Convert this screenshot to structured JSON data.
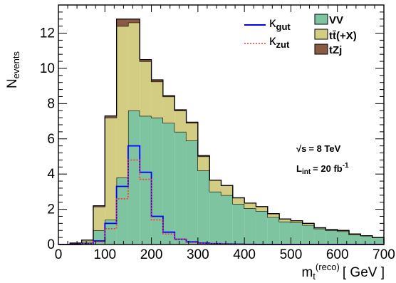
{
  "chart_data": {
    "type": "bar",
    "stacked": true,
    "bin_width": 25,
    "x": [
      0,
      25,
      50,
      75,
      100,
      125,
      150,
      175,
      200,
      225,
      250,
      275,
      300,
      325,
      350,
      375,
      400,
      425,
      450,
      475,
      500,
      525,
      550,
      575,
      600,
      625,
      650,
      675
    ],
    "series": [
      {
        "name": "VV",
        "color": "#7fc4a0",
        "values": [
          0,
          0.05,
          0.15,
          0.8,
          1.4,
          3.8,
          7.6,
          7.3,
          7.2,
          6.9,
          6.4,
          5.9,
          4.2,
          3.0,
          2.8,
          2.3,
          2.05,
          1.9,
          1.55,
          1.3,
          1.25,
          1.1,
          0.9,
          0.8,
          0.75,
          0.55,
          0.5,
          0.4
        ]
      },
      {
        "name": "tt̄(+X)",
        "color": "#d3cd84",
        "values": [
          0,
          0.03,
          0.1,
          1.35,
          5.8,
          8.6,
          5.0,
          3.1,
          2.05,
          1.5,
          1.2,
          1.0,
          0.8,
          0.65,
          0.55,
          0.35,
          0.3,
          0.25,
          0.2,
          0.15,
          0.1,
          0.1,
          0.05,
          0.05,
          0.05,
          0.05,
          0.0,
          0.0
        ]
      },
      {
        "name": "tZj",
        "color": "#8b5a44",
        "values": [
          0,
          0,
          0,
          0.05,
          0.1,
          0.4,
          0.2,
          0.1,
          0.1,
          0.05,
          0.05,
          0.05,
          0.05,
          0.0,
          0.0,
          0.0,
          0.0,
          0.0,
          0.0,
          0.0,
          0.0,
          0.0,
          0.0,
          0.0,
          0.0,
          0.0,
          0.0,
          0.0
        ]
      }
    ],
    "signals": [
      {
        "name": "gut",
        "legend_symbol": "κ",
        "color": "#0000ff",
        "style": "solid",
        "values": [
          0,
          0,
          0.05,
          0.2,
          1.2,
          3.3,
          5.6,
          4.1,
          1.6,
          0.7,
          0.3,
          0.15,
          0.08,
          0.05,
          0.03,
          0.02,
          0.01,
          0.0,
          0.0,
          0.0,
          0.0,
          0.0,
          0.0,
          0.0,
          0.0,
          0.0,
          0.0,
          0.0
        ]
      },
      {
        "name": "zut",
        "legend_symbol": "κ",
        "color": "#ff3333",
        "style": "dotted",
        "values": [
          0,
          0,
          0.05,
          0.15,
          0.9,
          2.6,
          4.8,
          3.7,
          1.4,
          0.6,
          0.3,
          0.12,
          0.06,
          0.04,
          0.02,
          0.01,
          0.0,
          0.0,
          0.0,
          0.0,
          0.0,
          0.0,
          0.0,
          0.0,
          0.0,
          0.0,
          0.0,
          0.0
        ]
      }
    ],
    "xlim": [
      0,
      700
    ],
    "ylim": [
      0,
      13.6
    ],
    "xticks": [
      "0",
      "100",
      "200",
      "300",
      "400",
      "500",
      "600",
      "700"
    ],
    "yticks": [
      "0",
      "2",
      "4",
      "6",
      "8",
      "10",
      "12"
    ],
    "xlabel": {
      "main": "m",
      "sub": "t",
      "sup": "(reco)",
      "unit": "[ GeV ]"
    },
    "ylabel": {
      "main": "N",
      "sub": "events"
    },
    "annotations": {
      "energy": {
        "prefix": "√s",
        "text": "= 8 TeV"
      },
      "lumi": {
        "main": "L",
        "sub": "int",
        "text": "= 20 fb",
        "sup": "-1"
      }
    },
    "legend_placement": "top-right"
  }
}
